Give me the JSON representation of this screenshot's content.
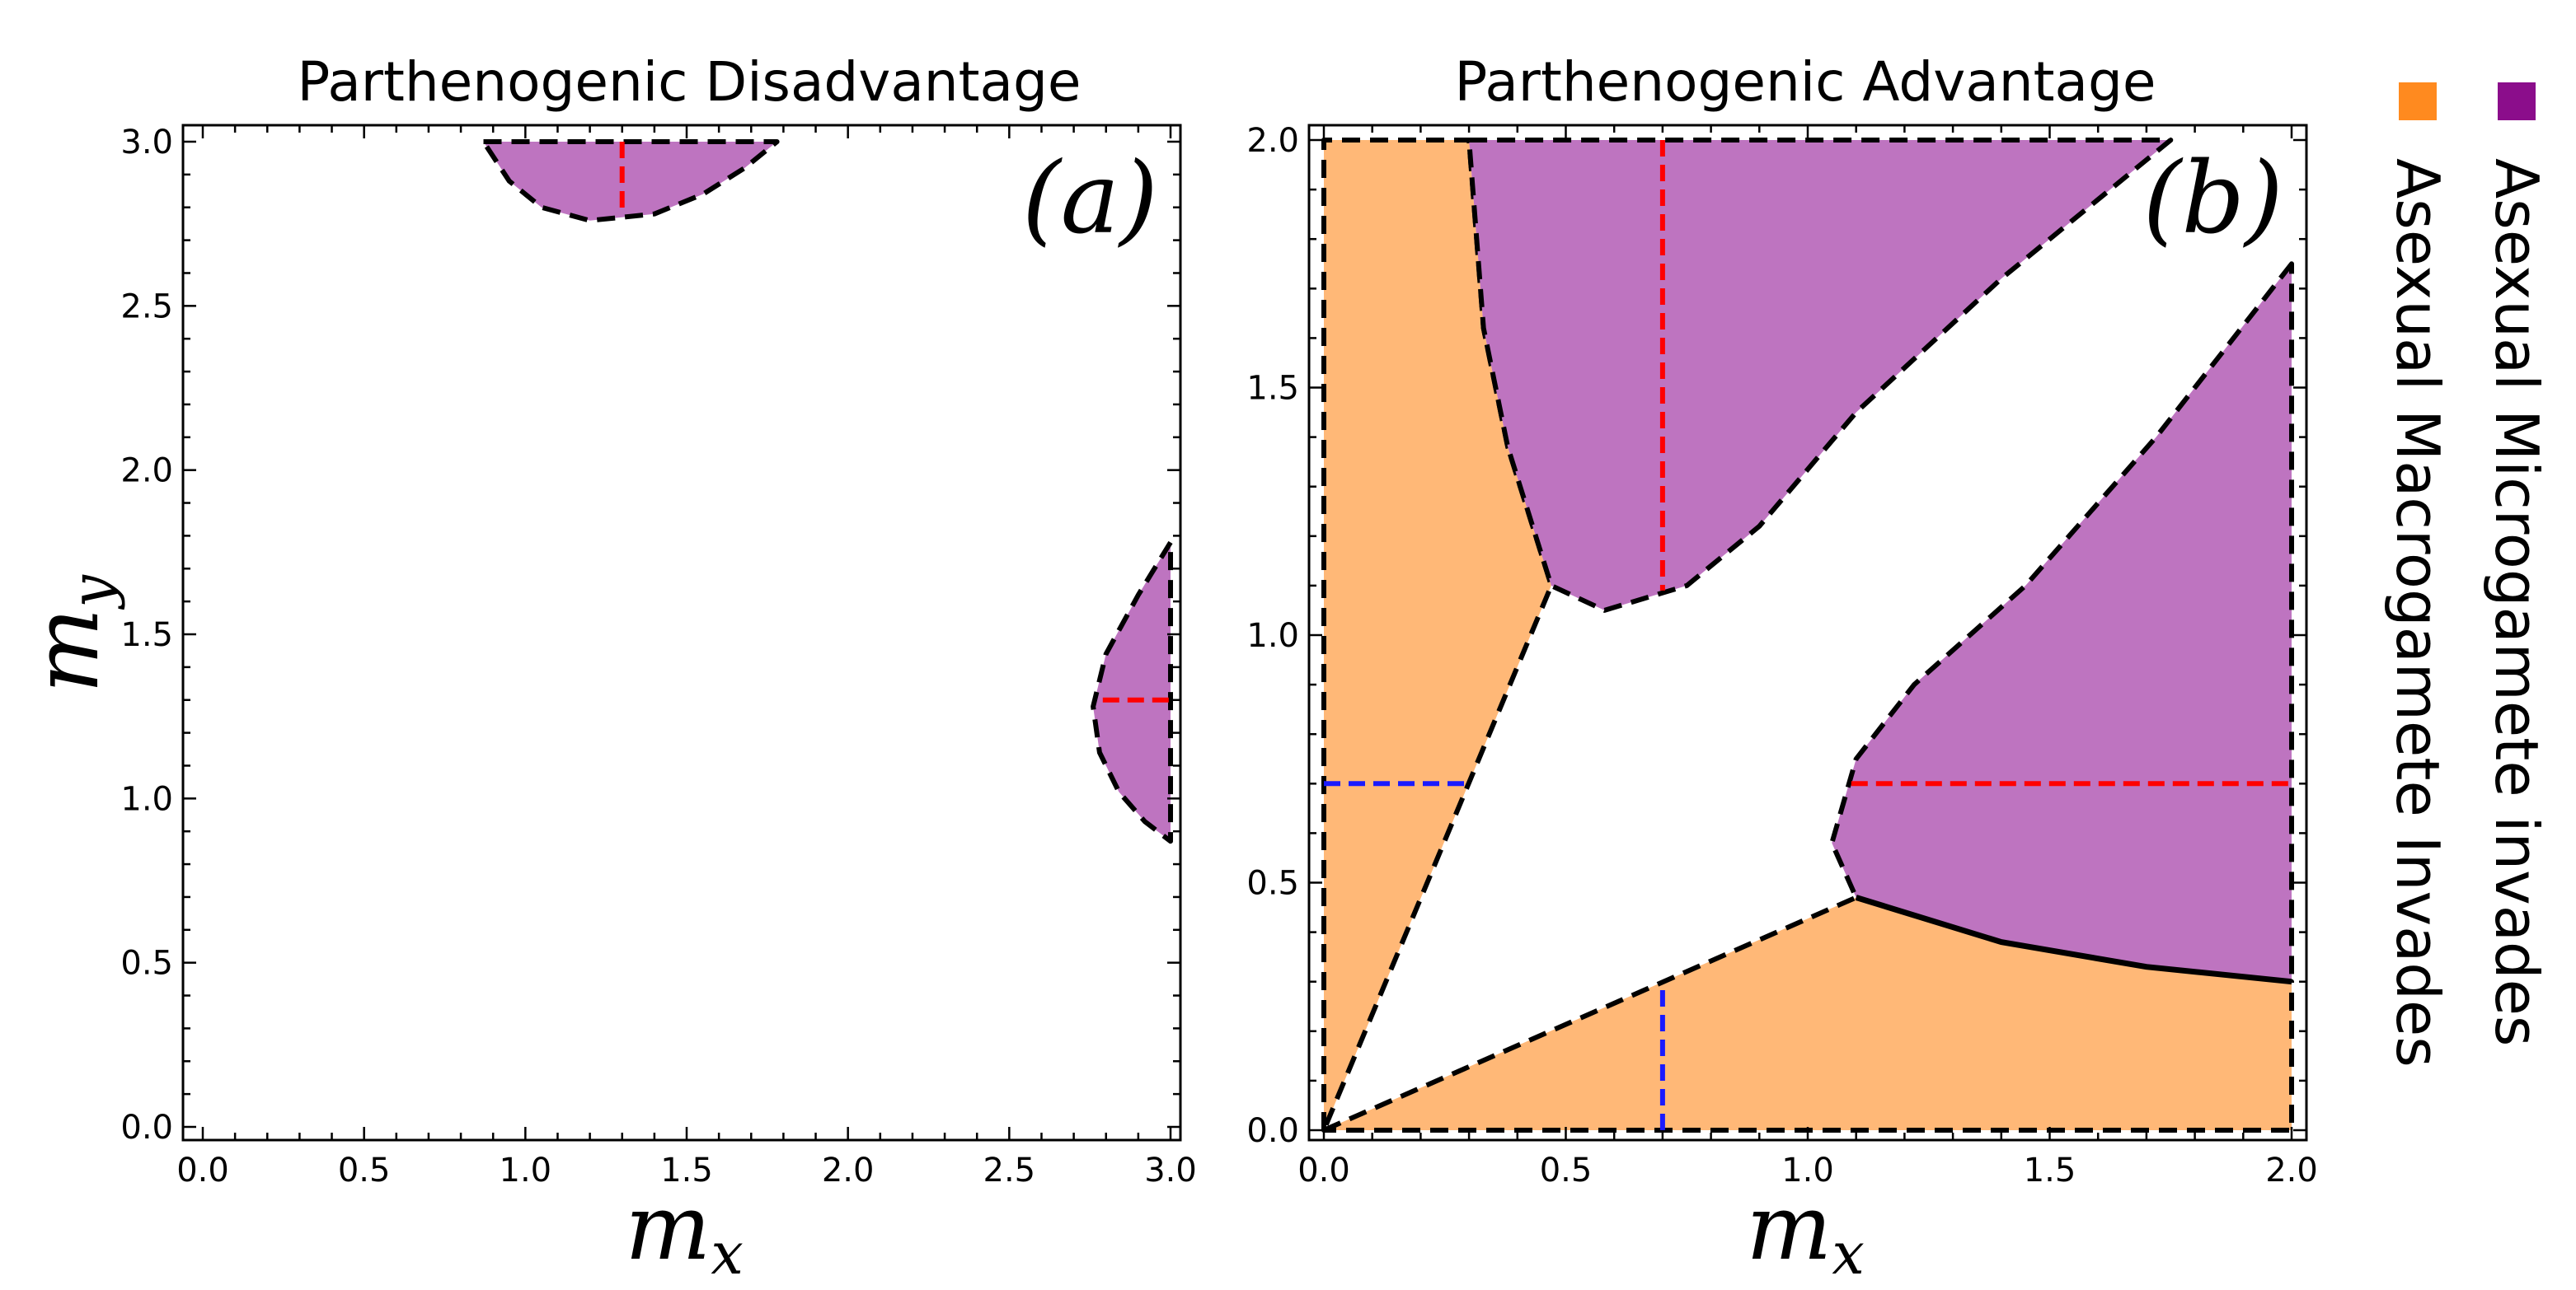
{
  "colors": {
    "orange": "#ffb877",
    "purple": "#be74c0",
    "orange_swatch": "#ff8a1f",
    "purple_swatch": "#8b0d8b",
    "red_line": "#ff0000",
    "blue_line": "#1a1aff",
    "boundary": "#000000"
  },
  "chart_data": [
    {
      "type": "area",
      "panel": "(a)",
      "title": "Parthenogenic Disadvantage",
      "xlabel": "m",
      "xlabel_sub": "x",
      "ylabel": "m",
      "ylabel_sub": "y",
      "xlim": [
        0,
        3
      ],
      "ylim": [
        0,
        3
      ],
      "xticks": [
        "0.0",
        "0.5",
        "1.0",
        "1.5",
        "2.0",
        "2.5",
        "3.0"
      ],
      "yticks": [
        "0.0",
        "0.5",
        "1.0",
        "1.5",
        "2.0",
        "2.5",
        "3.0"
      ],
      "regions": [
        {
          "name": "Asexual Microgamete invades",
          "color": "purple",
          "polygon": [
            [
              0.87,
              3.0
            ],
            [
              1.78,
              3.0
            ],
            [
              1.68,
              2.92
            ],
            [
              1.55,
              2.84
            ],
            [
              1.4,
              2.78
            ],
            [
              1.2,
              2.76
            ],
            [
              1.05,
              2.8
            ],
            [
              0.95,
              2.88
            ]
          ]
        },
        {
          "name": "Asexual Microgamete invades",
          "color": "purple",
          "polygon": [
            [
              3.0,
              1.78
            ],
            [
              2.9,
              1.62
            ],
            [
              2.8,
              1.44
            ],
            [
              2.76,
              1.28
            ],
            [
              2.78,
              1.14
            ],
            [
              2.84,
              1.02
            ],
            [
              2.92,
              0.93
            ],
            [
              3.0,
              0.87
            ]
          ]
        }
      ],
      "dashed_lines": [
        {
          "color": "red_line",
          "points": [
            [
              1.3,
              3.0
            ],
            [
              1.3,
              2.78
            ]
          ]
        },
        {
          "color": "red_line",
          "points": [
            [
              2.79,
              1.3
            ],
            [
              3.0,
              1.3
            ]
          ]
        }
      ]
    },
    {
      "type": "area",
      "panel": "(b)",
      "title": "Parthenogenic Advantage",
      "xlabel": "m",
      "xlabel_sub": "x",
      "xlim": [
        0,
        2
      ],
      "ylim": [
        0,
        2
      ],
      "xticks": [
        "0.0",
        "0.5",
        "1.0",
        "1.5",
        "2.0"
      ],
      "yticks": [
        "0.0",
        "0.5",
        "1.0",
        "1.5",
        "2.0"
      ],
      "regions": [
        {
          "name": "Asexual Macrogamete Invades",
          "color": "orange",
          "polygon": [
            [
              0,
              0
            ],
            [
              0,
              2.0
            ],
            [
              0.3,
              2.0
            ],
            [
              0.33,
              1.62
            ],
            [
              0.38,
              1.38
            ],
            [
              0.47,
              1.1
            ]
          ]
        },
        {
          "name": "Asexual Macrogamete Invades",
          "color": "orange",
          "polygon": [
            [
              0,
              0
            ],
            [
              1.1,
              0.47
            ],
            [
              1.4,
              0.38
            ],
            [
              1.7,
              0.33
            ],
            [
              2.0,
              0.3
            ],
            [
              2.0,
              0
            ]
          ]
        },
        {
          "name": "Asexual Microgamete invades",
          "color": "purple",
          "polygon": [
            [
              0.3,
              2.0
            ],
            [
              1.75,
              2.0
            ],
            [
              1.4,
              1.72
            ],
            [
              1.1,
              1.45
            ],
            [
              0.9,
              1.22
            ],
            [
              0.75,
              1.1
            ],
            [
              0.58,
              1.05
            ],
            [
              0.47,
              1.1
            ],
            [
              0.38,
              1.38
            ],
            [
              0.33,
              1.62
            ]
          ]
        },
        {
          "name": "Asexual Microgamete invades",
          "color": "purple",
          "polygon": [
            [
              2.0,
              1.75
            ],
            [
              1.72,
              1.4
            ],
            [
              1.45,
              1.1
            ],
            [
              1.22,
              0.9
            ],
            [
              1.1,
              0.75
            ],
            [
              1.05,
              0.58
            ],
            [
              1.1,
              0.47
            ],
            [
              1.4,
              0.38
            ],
            [
              1.7,
              0.33
            ],
            [
              2.0,
              0.3
            ]
          ]
        }
      ],
      "solid_boundary": [
        [
          1.1,
          0.47
        ],
        [
          1.4,
          0.38
        ],
        [
          1.7,
          0.33
        ],
        [
          2.0,
          0.3
        ]
      ],
      "dashed_lines": [
        {
          "color": "red_line",
          "points": [
            [
              0.7,
              2.0
            ],
            [
              0.7,
              1.09
            ]
          ]
        },
        {
          "color": "red_line",
          "points": [
            [
              1.09,
              0.7
            ],
            [
              2.0,
              0.7
            ]
          ]
        },
        {
          "color": "blue_line",
          "points": [
            [
              0.0,
              0.7
            ],
            [
              0.29,
              0.7
            ]
          ]
        },
        {
          "color": "blue_line",
          "points": [
            [
              0.7,
              0.0
            ],
            [
              0.7,
              0.29
            ]
          ]
        }
      ]
    }
  ],
  "legend": {
    "items": [
      {
        "label": "Asexual Microgamete invades",
        "color": "purple_swatch"
      },
      {
        "label": "Asexual Macrogamete Invades",
        "color": "orange_swatch"
      }
    ]
  }
}
